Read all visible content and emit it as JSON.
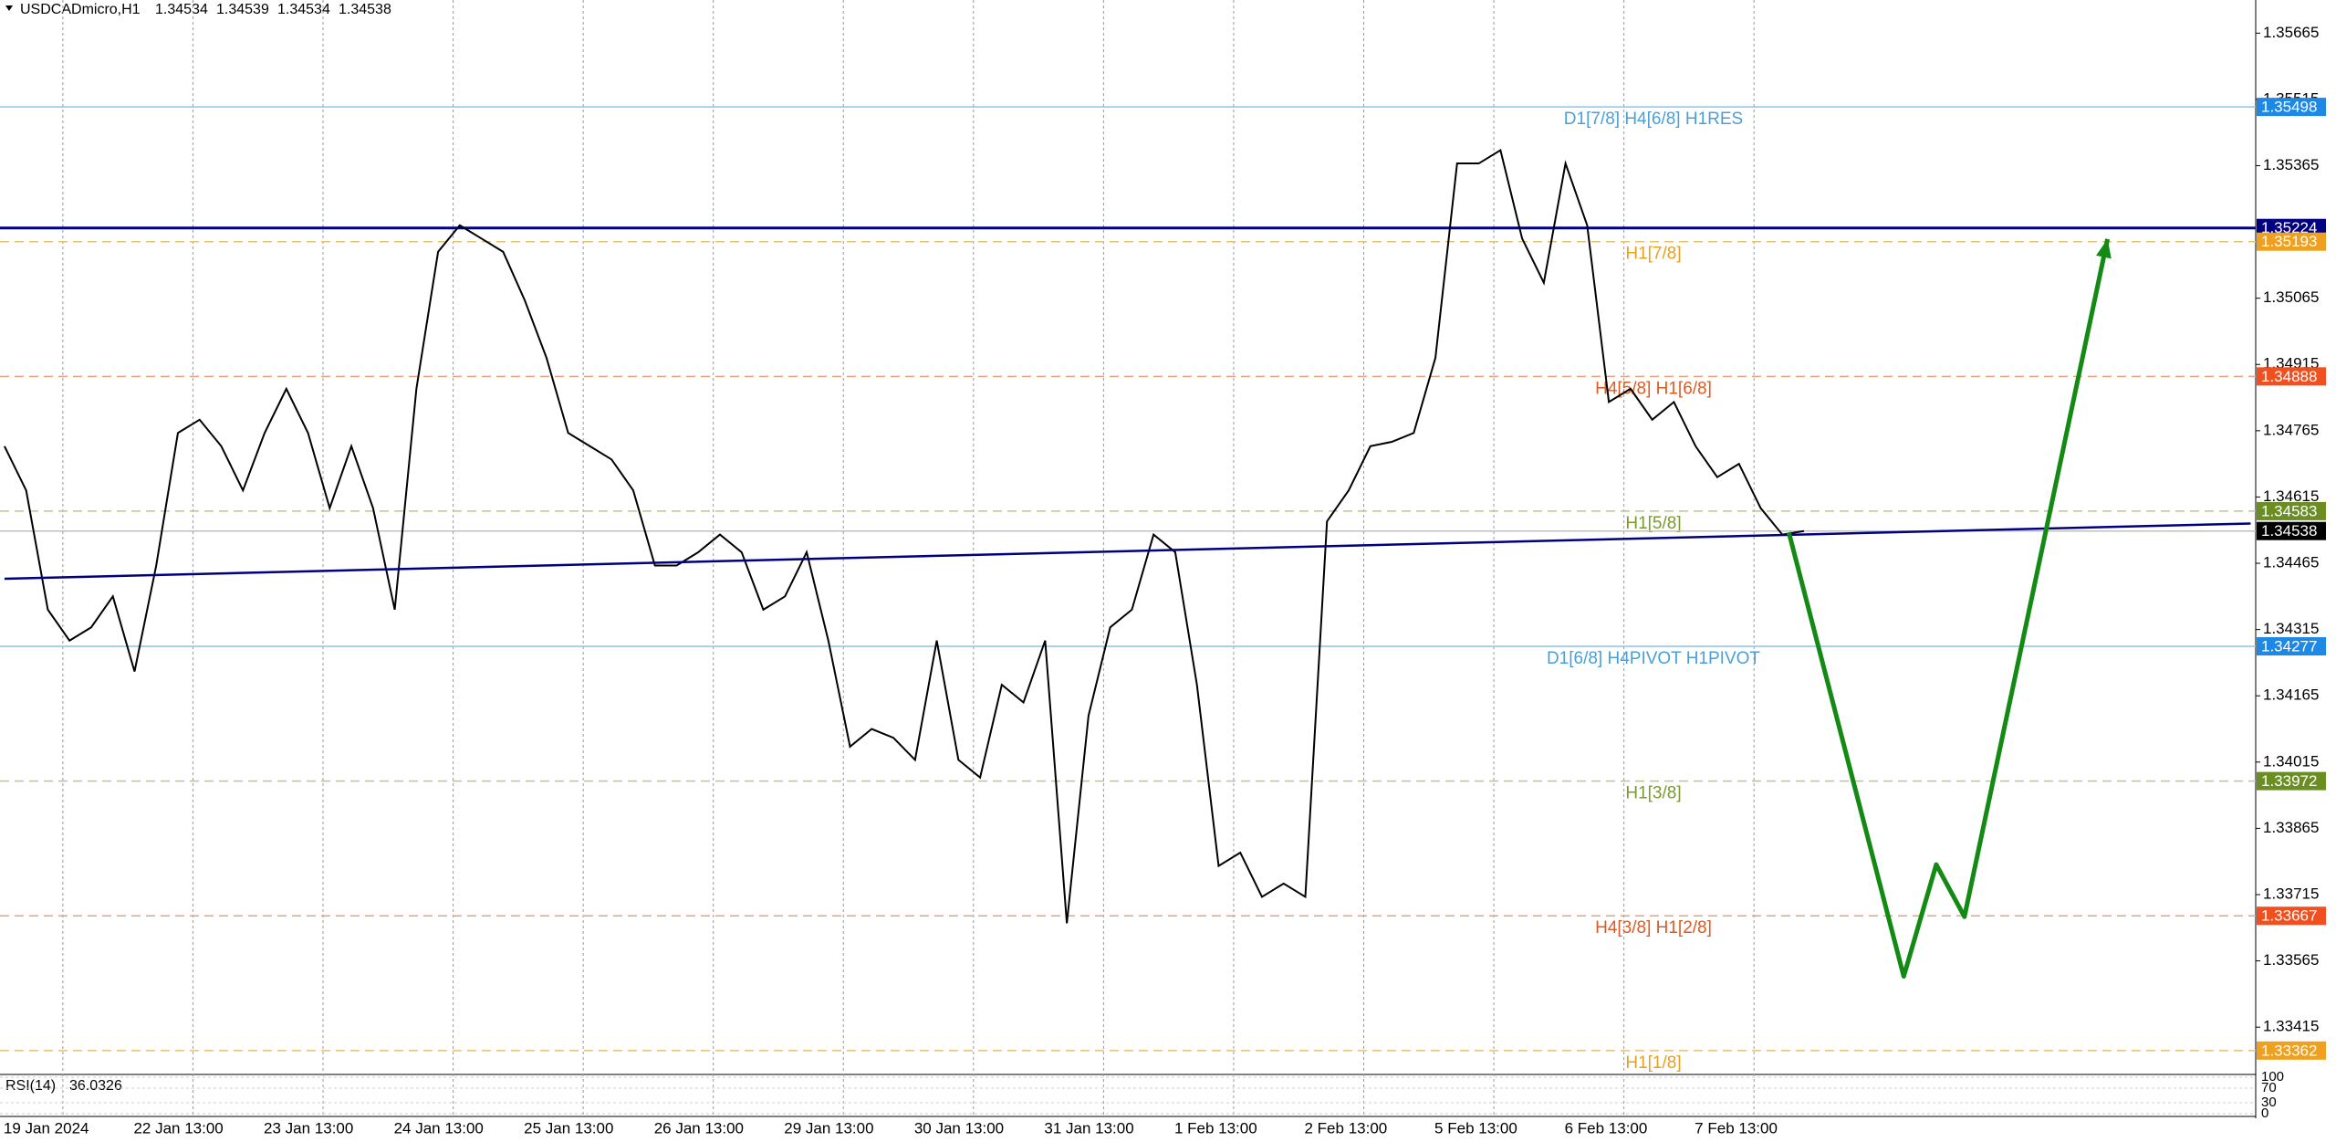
{
  "chart_data": {
    "type": "line",
    "symbol": "USDCADmicro,H1",
    "ohlc": [
      1.34534,
      1.34539,
      1.34534,
      1.34538
    ],
    "categories": [
      "19 Jan 2024",
      null,
      null,
      null,
      null,
      null,
      "22 Jan 13:00",
      null,
      null,
      null,
      null,
      null,
      "23 Jan 13:00",
      null,
      null,
      null,
      null,
      null,
      "24 Jan 13:00",
      null,
      null,
      null,
      null,
      null,
      "25 Jan 13:00",
      null,
      null,
      null,
      null,
      null,
      "26 Jan 13:00",
      null,
      null,
      null,
      null,
      null,
      "29 Jan 13:00",
      null,
      null,
      null,
      null,
      null,
      "30 Jan 13:00",
      null,
      null,
      null,
      null,
      null,
      "31 Jan 13:00",
      null,
      null,
      null,
      null,
      null,
      "1 Feb 13:00",
      null,
      null,
      null,
      null,
      null,
      "2 Feb 13:00",
      null,
      null,
      null,
      null,
      null,
      "5 Feb 13:00",
      null,
      null,
      null,
      null,
      null,
      "6 Feb 13:00",
      null,
      null,
      null,
      null,
      null,
      "7 Feb 13:00",
      null,
      null,
      null,
      null,
      null
    ],
    "values": [
      1.3473,
      1.3463,
      1.3436,
      1.3429,
      1.3432,
      1.3439,
      1.3422,
      1.3446,
      1.3476,
      1.3479,
      1.3473,
      1.3463,
      1.3476,
      1.3486,
      1.3476,
      1.3459,
      1.3473,
      1.3459,
      1.3436,
      1.3486,
      1.3517,
      1.3523,
      1.352,
      1.3517,
      1.3506,
      1.3493,
      1.3476,
      1.3473,
      1.347,
      1.3463,
      1.3446,
      1.3446,
      1.3449,
      1.3453,
      1.3449,
      1.3436,
      1.3439,
      1.3449,
      1.3429,
      1.3405,
      1.3409,
      1.3407,
      1.3402,
      1.3429,
      1.3402,
      1.3398,
      1.3419,
      1.3415,
      1.3429,
      1.3365,
      1.3412,
      1.3432,
      1.3436,
      1.3453,
      1.3449,
      1.3419,
      1.3378,
      1.3381,
      1.3371,
      1.3374,
      1.3371,
      1.3456,
      1.3463,
      1.3473,
      1.3474,
      1.3476,
      1.3493,
      1.3537,
      1.3537,
      1.354,
      1.352,
      1.351,
      1.3537,
      1.3523,
      1.3483,
      1.3486,
      1.3479,
      1.3483,
      1.3473,
      1.3466,
      1.3469,
      1.3459,
      1.3453,
      1.34538
    ],
    "color": "#000000",
    "ylim": [
      1.3331,
      1.3574
    ],
    "yticks": [
      1.35665,
      1.35515,
      1.35365,
      1.35065,
      1.34915,
      1.34765,
      1.34615,
      1.34465,
      1.34315,
      1.34165,
      1.34015,
      1.33865,
      1.33715,
      1.33565,
      1.33415
    ],
    "grid": true,
    "levels": [
      {
        "price": 1.35498,
        "label": "D1[7/8] H4[6/8] H1RES",
        "color": "#8ec3ea",
        "text_color": "#4a9fd8",
        "dash": false,
        "tag": "#1e88e5"
      },
      {
        "price": 1.35224,
        "color": "#000080",
        "dash": false,
        "width": 3,
        "tag": "#000080"
      },
      {
        "price": 1.35193,
        "label": "H1[7/8]",
        "color": "#e8c070",
        "text_color": "#e8a020",
        "dash": true,
        "tag": "#f0a020"
      },
      {
        "price": 1.34888,
        "label": "H4[5/8] H1[6/8]",
        "color": "#e8a080",
        "text_color": "#e05a20",
        "dash": true,
        "tag": "#f05020"
      },
      {
        "price": 1.34583,
        "label": "H1[5/8]",
        "color": "#b8c890",
        "text_color": "#7a9a2a",
        "dash": true,
        "tag": "#6b8e23"
      },
      {
        "price": 1.34538,
        "color": "#c0c0c0",
        "dash": false,
        "tag": "#000000"
      },
      {
        "price": 1.34277,
        "label": "D1[6/8] H4PIVOT H1PIVOT",
        "color": "#8ec3ea",
        "text_color": "#4a9fd8",
        "dash": false,
        "tag": "#1e88e5"
      },
      {
        "price": 1.33972,
        "label": "H1[3/8]",
        "color": "#b8c890",
        "text_color": "#7a9a2a",
        "dash": true,
        "tag": "#6b8e23"
      },
      {
        "price": 1.33667,
        "label": "H4[3/8] H1[2/8]",
        "color": "#e8a080",
        "text_color": "#e05a20",
        "dash": true,
        "tag": "#f05020"
      },
      {
        "price": 1.33362,
        "label": "H1[1/8]",
        "color": "#e8c070",
        "text_color": "#e8a020",
        "dash": true,
        "tag": "#f0a020"
      }
    ],
    "drawings": [
      {
        "color": "#000080",
        "x": [
          0,
          103.6
        ],
        "values": [
          1.3443,
          1.34555
        ]
      },
      {
        "color": "#138a13",
        "x": [
          82.3,
          87.6,
          89.1,
          90.4,
          97.0
        ],
        "values": [
          1.34535,
          1.3353,
          1.33783,
          1.33665,
          1.35199
        ]
      }
    ],
    "rsi": {
      "name": "RSI(14)",
      "value": 36.0326,
      "ylim": [
        0,
        100
      ],
      "yticks": [
        0,
        30,
        70,
        100
      ]
    }
  }
}
